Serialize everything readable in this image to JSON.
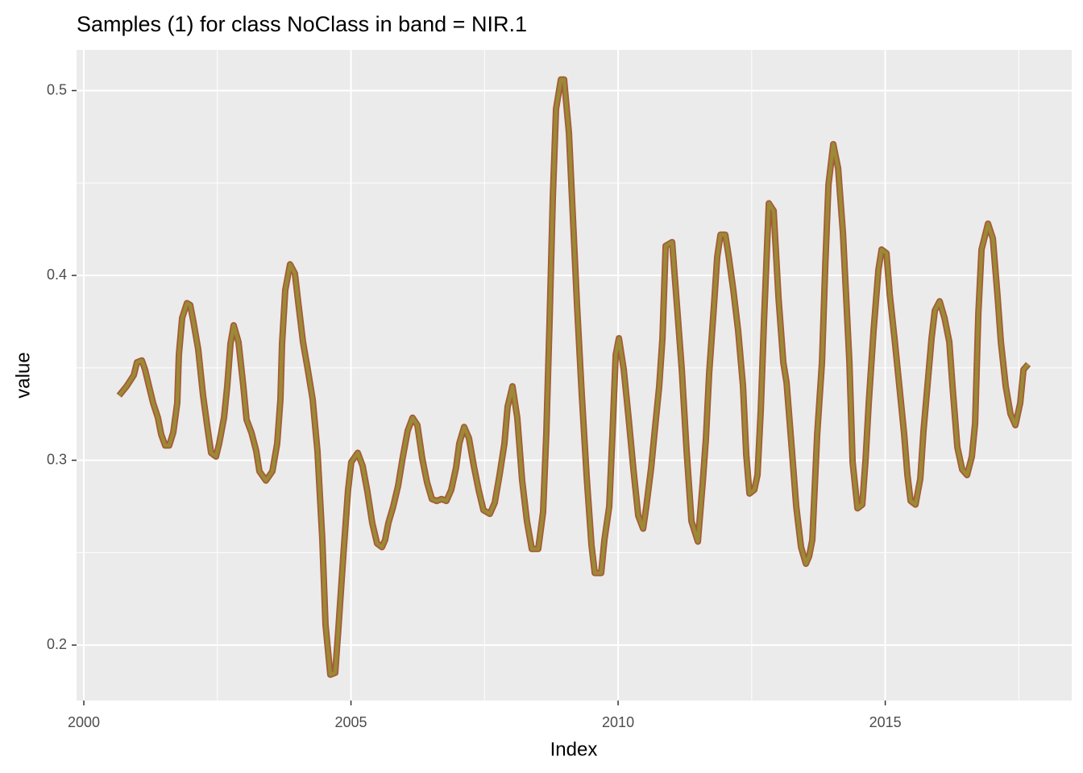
{
  "chart_data": {
    "type": "line",
    "title": "Samples (1) for class NoClass in band = NIR.1",
    "x_label": "Index",
    "y_label": "value",
    "x": [
      2000.66,
      2000.8,
      2000.935,
      2000.995,
      2001.086,
      2001.146,
      2001.221,
      2001.297,
      2001.387,
      2001.448,
      2001.523,
      2001.598,
      2001.674,
      2001.749,
      2001.779,
      2001.84,
      2001.93,
      2001.991,
      2002.051,
      2002.141,
      2002.232,
      2002.322,
      2002.383,
      2002.473,
      2002.533,
      2002.624,
      2002.684,
      2002.745,
      2002.805,
      2002.895,
      2002.986,
      2003.046,
      2003.137,
      2003.227,
      2003.287,
      2003.408,
      2003.529,
      2003.619,
      2003.68,
      2003.71,
      2003.77,
      2003.86,
      2003.951,
      2004.011,
      2004.102,
      2004.192,
      2004.283,
      2004.373,
      2004.464,
      2004.524,
      2004.614,
      2004.705,
      2004.765,
      2004.856,
      2004.946,
      2005.006,
      2005.127,
      2005.218,
      2005.308,
      2005.399,
      2005.489,
      2005.58,
      2005.64,
      2005.7,
      2005.791,
      2005.881,
      2005.972,
      2006.062,
      2006.153,
      2006.243,
      2006.334,
      2006.424,
      2006.515,
      2006.605,
      2006.696,
      2006.786,
      2006.877,
      2006.967,
      2007.027,
      2007.118,
      2007.208,
      2007.299,
      2007.389,
      2007.48,
      2007.6,
      2007.691,
      2007.781,
      2007.872,
      2007.932,
      2008.023,
      2008.113,
      2008.204,
      2008.294,
      2008.385,
      2008.505,
      2008.596,
      2008.657,
      2008.717,
      2008.778,
      2008.838,
      2008.929,
      2008.989,
      2009.08,
      2009.14,
      2009.231,
      2009.321,
      2009.412,
      2009.502,
      2009.563,
      2009.683,
      2009.744,
      2009.834,
      2009.894,
      2009.955,
      2010.015,
      2010.106,
      2010.196,
      2010.287,
      2010.377,
      2010.468,
      2010.528,
      2010.619,
      2010.679,
      2010.769,
      2010.83,
      2010.89,
      2011.011,
      2011.101,
      2011.192,
      2011.282,
      2011.373,
      2011.493,
      2011.584,
      2011.644,
      2011.704,
      2011.795,
      2011.855,
      2011.916,
      2012.006,
      2012.066,
      2012.157,
      2012.247,
      2012.338,
      2012.398,
      2012.459,
      2012.549,
      2012.609,
      2012.67,
      2012.73,
      2012.821,
      2012.911,
      2013.002,
      2013.092,
      2013.153,
      2013.243,
      2013.334,
      2013.424,
      2013.515,
      2013.575,
      2013.635,
      2013.726,
      2013.816,
      2013.877,
      2013.937,
      2014.027,
      2014.118,
      2014.208,
      2014.269,
      2014.329,
      2014.389,
      2014.48,
      2014.57,
      2014.631,
      2014.691,
      2014.781,
      2014.872,
      2014.932,
      2015.023,
      2015.083,
      2015.173,
      2015.264,
      2015.354,
      2015.415,
      2015.475,
      2015.566,
      2015.656,
      2015.716,
      2015.777,
      2015.867,
      2015.928,
      2016.018,
      2016.109,
      2016.199,
      2016.259,
      2016.35,
      2016.44,
      2016.531,
      2016.621,
      2016.682,
      2016.742,
      2016.802,
      2016.923,
      2017.014,
      2017.104,
      2017.164,
      2017.255,
      2017.345,
      2017.436,
      2017.526,
      2017.587,
      2017.677
    ],
    "series": [
      {
        "color": "#9b8a36",
        "edge_color": "#a65a38",
        "values": [
          0.335,
          0.34,
          0.346,
          0.353,
          0.354,
          0.349,
          0.34,
          0.331,
          0.323,
          0.314,
          0.308,
          0.308,
          0.315,
          0.331,
          0.357,
          0.377,
          0.385,
          0.384,
          0.375,
          0.36,
          0.335,
          0.316,
          0.304,
          0.302,
          0.309,
          0.323,
          0.34,
          0.363,
          0.373,
          0.364,
          0.34,
          0.322,
          0.315,
          0.305,
          0.294,
          0.289,
          0.294,
          0.309,
          0.333,
          0.363,
          0.392,
          0.406,
          0.401,
          0.386,
          0.364,
          0.349,
          0.333,
          0.305,
          0.257,
          0.211,
          0.184,
          0.185,
          0.209,
          0.248,
          0.284,
          0.299,
          0.304,
          0.297,
          0.283,
          0.266,
          0.255,
          0.253,
          0.257,
          0.266,
          0.275,
          0.286,
          0.302,
          0.316,
          0.323,
          0.319,
          0.301,
          0.288,
          0.279,
          0.278,
          0.279,
          0.278,
          0.284,
          0.296,
          0.309,
          0.318,
          0.312,
          0.297,
          0.284,
          0.273,
          0.271,
          0.277,
          0.292,
          0.309,
          0.329,
          0.34,
          0.323,
          0.289,
          0.267,
          0.252,
          0.252,
          0.272,
          0.315,
          0.375,
          0.442,
          0.49,
          0.506,
          0.506,
          0.477,
          0.44,
          0.384,
          0.335,
          0.291,
          0.254,
          0.239,
          0.239,
          0.257,
          0.275,
          0.314,
          0.357,
          0.366,
          0.349,
          0.323,
          0.295,
          0.27,
          0.263,
          0.275,
          0.296,
          0.314,
          0.34,
          0.366,
          0.416,
          0.418,
          0.384,
          0.349,
          0.305,
          0.267,
          0.256,
          0.288,
          0.312,
          0.347,
          0.384,
          0.41,
          0.422,
          0.422,
          0.411,
          0.392,
          0.37,
          0.34,
          0.303,
          0.282,
          0.284,
          0.292,
          0.327,
          0.375,
          0.439,
          0.435,
          0.388,
          0.353,
          0.342,
          0.309,
          0.275,
          0.253,
          0.244,
          0.248,
          0.257,
          0.314,
          0.353,
          0.405,
          0.449,
          0.471,
          0.458,
          0.423,
          0.388,
          0.353,
          0.299,
          0.274,
          0.276,
          0.3,
          0.331,
          0.37,
          0.403,
          0.414,
          0.412,
          0.39,
          0.366,
          0.34,
          0.314,
          0.292,
          0.278,
          0.276,
          0.29,
          0.316,
          0.336,
          0.366,
          0.381,
          0.386,
          0.377,
          0.364,
          0.34,
          0.307,
          0.295,
          0.292,
          0.302,
          0.32,
          0.379,
          0.414,
          0.428,
          0.42,
          0.388,
          0.364,
          0.34,
          0.325,
          0.319,
          0.331,
          0.349,
          0.352
        ]
      }
    ],
    "xlim": [
      1999.864,
      2018.49
    ],
    "xticks": [
      2000,
      2005,
      2010,
      2015
    ],
    "ylim": [
      0.17,
      0.522
    ],
    "yticks": [
      0.2,
      0.3,
      0.4,
      0.5
    ],
    "grid": true,
    "panel_color": "#ebebeb"
  }
}
